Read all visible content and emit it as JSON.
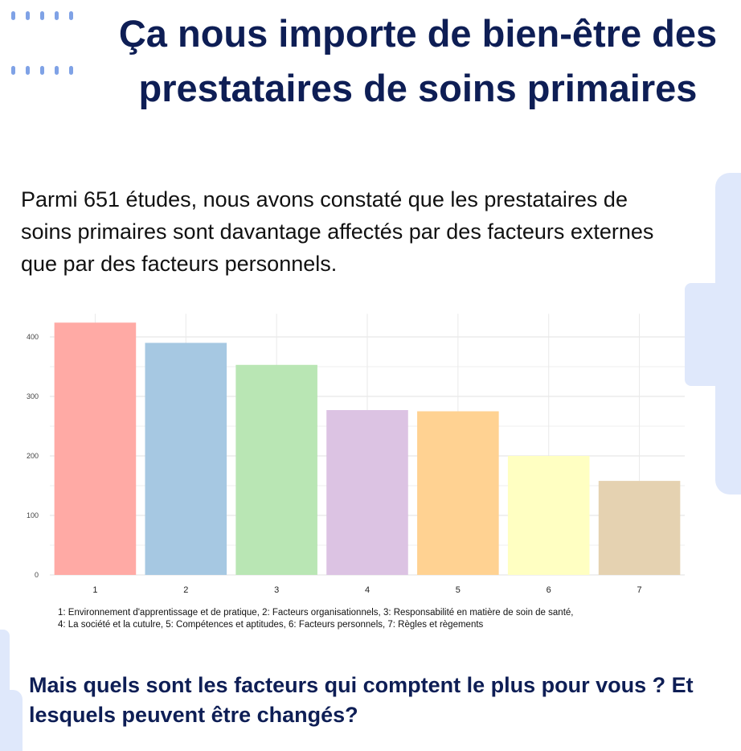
{
  "title": "Ça nous importe de bien-être des prestataires de soins primaires",
  "intro": "Parmi 651 études, nous avons constaté que les prestataires de soins primaires sont davantage affectés par des facteurs externes que par des facteurs personnels.",
  "legend_line1": "1: Environnement d'apprentissage et de pratique, 2: Facteurs organisationnels, 3: Responsabilité en matière de soin de santé,",
  "legend_line2": "4: La société et la cutulre, 5: Compétences et aptitudes, 6: Facteurs personnels, 7: Règles et règements",
  "question": "Mais quels sont les facteurs qui comptent le plus pour vous ? Et lesquels peuvent être changés?",
  "colors": {
    "title": "#0e1e55",
    "decoration": "#dfe8fb",
    "dots": "#7fa2e6",
    "bars": [
      "#ffaaa5",
      "#a6c8e2",
      "#b9e6b4",
      "#dcc3e3",
      "#ffd292",
      "#ffffc2",
      "#e5d2b1"
    ]
  },
  "chart_data": {
    "type": "bar",
    "categories": [
      "1",
      "2",
      "3",
      "4",
      "5",
      "6",
      "7"
    ],
    "values": [
      424,
      390,
      353,
      277,
      275,
      200,
      158
    ],
    "ylim": [
      0,
      420
    ],
    "yticks": [
      0,
      100,
      200,
      300,
      400
    ],
    "grid": true,
    "legend": "below"
  }
}
